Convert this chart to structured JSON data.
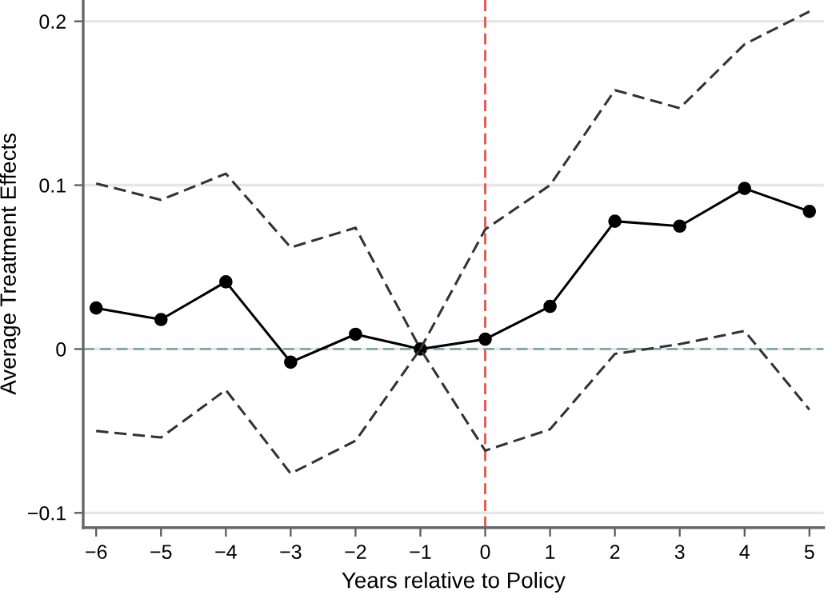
{
  "chart_data": {
    "type": "line",
    "xlabel": "Years relative to Policy",
    "ylabel": "Average Treatment Effects",
    "x": [
      -6,
      -5,
      -4,
      -3,
      -2,
      -1,
      0,
      1,
      2,
      3,
      4,
      5
    ],
    "series": [
      {
        "color": "#000000",
        "marker": "circle",
        "line_style": "solid",
        "values": [
          0.025,
          0.018,
          0.041,
          -0.008,
          0.009,
          0,
          0.006,
          0.026,
          0.078,
          0.075,
          0.098,
          0.084
        ]
      },
      {
        "color": "#333333",
        "marker": "none",
        "line_style": "dashed",
        "values": [
          0.101,
          0.091,
          0.107,
          0.062,
          0.074,
          0,
          0.073,
          0.1,
          0.158,
          0.147,
          0.186,
          0.206
        ]
      },
      {
        "color": "#333333",
        "marker": "none",
        "line_style": "dashed",
        "values": [
          -0.05,
          -0.054,
          -0.025,
          -0.076,
          -0.056,
          0,
          -0.062,
          -0.049,
          -0.003,
          0.003,
          0.011,
          -0.037
        ]
      }
    ],
    "xlim": [
      -6.2,
      5.22
    ],
    "ylim": [
      -0.109,
      0.213
    ],
    "xticks": [
      {
        "value": -6,
        "label": "−6"
      },
      {
        "value": -5,
        "label": "−5"
      },
      {
        "value": -4,
        "label": "−4"
      },
      {
        "value": -3,
        "label": "−3"
      },
      {
        "value": -2,
        "label": "−2"
      },
      {
        "value": -1,
        "label": "−1"
      },
      0,
      1,
      2,
      3,
      4,
      5
    ],
    "yticks": [
      {
        "value": -0.1,
        "label": "−0.1"
      },
      0,
      0.1,
      0.2
    ],
    "grid": "y",
    "ref_lines": [
      {
        "axis": "y",
        "value": 0,
        "color": "#7fa8a0",
        "line_style": "dashed"
      },
      {
        "axis": "x",
        "value": 0,
        "color": "#e8504a",
        "line_style": "dashed"
      }
    ]
  }
}
